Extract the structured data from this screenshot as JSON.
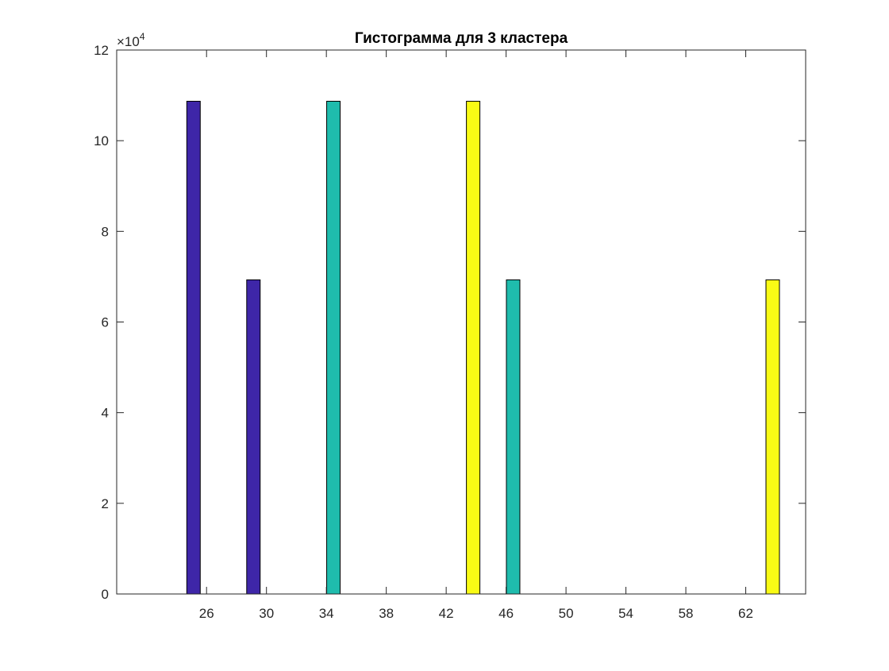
{
  "chart_data": {
    "type": "bar",
    "title": "Гистограмма для 3 кластера",
    "xlabel": "",
    "ylabel": "",
    "y_multiplier_label": "×10",
    "y_multiplier_exponent": "4",
    "x_tick_labels": [
      "26",
      "30",
      "34",
      "38",
      "42",
      "46",
      "50",
      "54",
      "58",
      "62"
    ],
    "y_tick_labels": [
      "0",
      "2",
      "4",
      "6",
      "8",
      "10",
      "12"
    ],
    "xlim": [
      20,
      66
    ],
    "ylim": [
      0,
      120000
    ],
    "grid": false,
    "colors": {
      "series1": "#3e26a8",
      "series2": "#1fbcad",
      "series3": "#f9fb15"
    },
    "series": [
      {
        "values": [
          108700,
          69300,
          0,
          0,
          0,
          0,
          0,
          0,
          0,
          0
        ]
      },
      {
        "values": [
          0,
          0,
          108700,
          0,
          0,
          69300,
          0,
          0,
          0,
          0
        ]
      },
      {
        "values": [
          0,
          0,
          0,
          0,
          108700,
          0,
          0,
          0,
          0,
          69300
        ]
      }
    ],
    "group_centers": [
      23.8,
      27.8,
      31.8,
      35.8,
      39.8,
      43.8,
      47.8,
      51.8,
      55.8,
      59.8
    ],
    "bar_offsets": [
      1.33,
      2.67,
      4.0
    ],
    "bar_width": 0.9
  }
}
